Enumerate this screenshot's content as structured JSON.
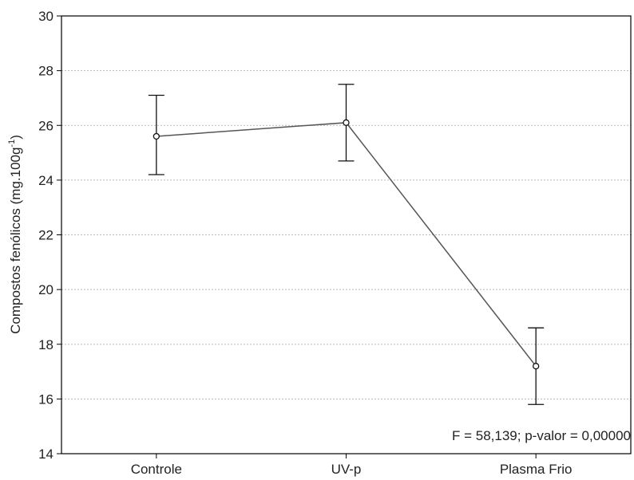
{
  "chart_data": {
    "type": "line",
    "categories": [
      "Controle",
      "UV-p",
      "Plasma Frio"
    ],
    "series": [
      {
        "values": [
          25.6,
          26.1,
          17.2
        ],
        "error_low": [
          24.2,
          24.7,
          15.8
        ],
        "error_high": [
          27.1,
          27.5,
          18.6
        ]
      }
    ],
    "ylabel": "Compostos fenólicos (mg.100g",
    "ylabel_superscript": "-1",
    "ylabel_suffix": ")",
    "ylim": [
      14,
      30
    ],
    "yticks": [
      14,
      16,
      18,
      20,
      22,
      24,
      26,
      28,
      30
    ],
    "grid": true,
    "annotation": "F = 58,139; p-valor = 0,00000",
    "colors": {
      "line": "#555555",
      "marker_fill": "#ffffff",
      "axis": "#000000",
      "grid": "#b8b8b8"
    }
  }
}
